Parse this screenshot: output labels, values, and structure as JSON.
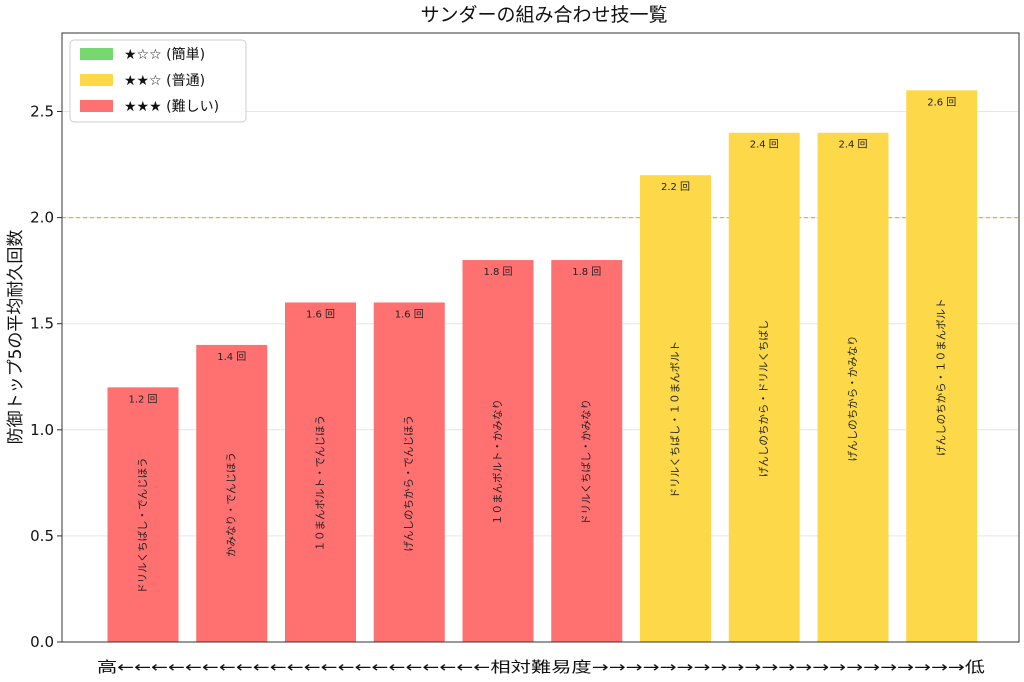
{
  "chart_data": {
    "type": "bar",
    "title": "サンダーの組み合わせ技一覧",
    "ylabel": "防御トップ5の平均耐久回数",
    "xlabel": "高←←←←←←←←←←←←←←←←←←←←←←相対難易度→→→→→→→→→→→→→→→→→→→→→→低",
    "ylim": [
      0,
      2.87
    ],
    "yticks": [
      "0.0",
      "0.5",
      "1.0",
      "1.5",
      "2.0",
      "2.5"
    ],
    "reference_line": 2.0,
    "value_unit": "回",
    "categories": [
      "ドリルくちばし・でんじほう",
      "かみなり・でんじほう",
      "１０まんボルト・でんじほう",
      "げんしのちから・でんじほう",
      "１０まんボルト・かみなり",
      "ドリルくちばし・かみなり",
      "ドリルくちばし・１０まんボルト",
      "げんしのちから・ドリルくちばし",
      "げんしのちから・かみなり",
      "げんしのちから・１０まんボルト"
    ],
    "values": [
      1.2,
      1.4,
      1.6,
      1.6,
      1.8,
      1.8,
      2.2,
      2.4,
      2.4,
      2.6
    ],
    "difficulty": [
      3,
      3,
      3,
      3,
      3,
      3,
      2,
      2,
      2,
      2
    ],
    "legend": {
      "position": "top-left",
      "entries": [
        {
          "label": "★☆☆ (簡単)",
          "color": "#77d870"
        },
        {
          "label": "★★☆ (普通)",
          "color": "#fdd94a"
        },
        {
          "label": "★★★ (難しい)",
          "color": "#ff7070"
        }
      ]
    },
    "grid": true
  }
}
